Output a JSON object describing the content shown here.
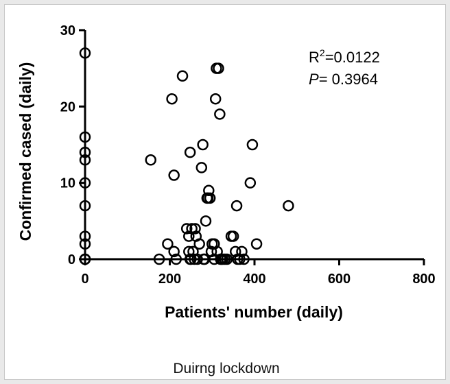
{
  "chart_data": {
    "type": "scatter",
    "title": "",
    "xlabel": "Patients' number (daily)",
    "ylabel": "Confirmed cased (daily)",
    "xlim": [
      0,
      800
    ],
    "ylim": [
      0,
      30
    ],
    "xticks": [
      "0",
      "200",
      "400",
      "600",
      "800"
    ],
    "yticks": [
      "0",
      "10",
      "20",
      "30"
    ],
    "annotation": {
      "r2_prefix": "R",
      "r2_sup": "2",
      "r2_value": "=0.0122",
      "p_label": "P",
      "p_value": "= 0.3964"
    },
    "caption": "Duirng lockdown",
    "x": [
      0,
      0,
      0,
      0,
      0,
      0,
      0,
      0,
      0,
      0,
      0,
      0,
      155,
      175,
      195,
      205,
      210,
      210,
      215,
      230,
      240,
      245,
      245,
      248,
      248,
      250,
      252,
      255,
      258,
      260,
      262,
      265,
      270,
      275,
      278,
      280,
      282,
      285,
      288,
      290,
      292,
      295,
      298,
      300,
      305,
      305,
      308,
      310,
      312,
      315,
      318,
      320,
      322,
      325,
      330,
      335,
      345,
      350,
      355,
      358,
      360,
      365,
      370,
      375,
      390,
      395,
      405,
      480
    ],
    "y": [
      27,
      16,
      14,
      13,
      10,
      7,
      3,
      2,
      0,
      0,
      0,
      0,
      13,
      0,
      2,
      21,
      11,
      1,
      0,
      24,
      4,
      3,
      1,
      0,
      14,
      0,
      4,
      1,
      0,
      4,
      3,
      0,
      2,
      12,
      15,
      0,
      0,
      5,
      8,
      8,
      9,
      8,
      1,
      2,
      0,
      2,
      21,
      25,
      1,
      25,
      19,
      0,
      0,
      0,
      0,
      0,
      3,
      3,
      1,
      7,
      0,
      0,
      1,
      0,
      10,
      15,
      2,
      7
    ]
  }
}
